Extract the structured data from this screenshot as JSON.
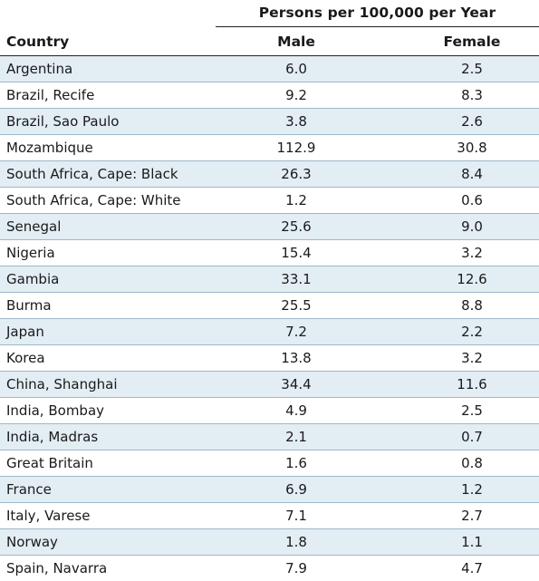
{
  "table": {
    "group_header": "Persons per 100,000 per Year",
    "columns": {
      "country": "Country",
      "male": "Male",
      "female": "Female"
    },
    "rows": [
      {
        "country": "Argentina",
        "male": "6.0",
        "female": "2.5"
      },
      {
        "country": "Brazil, Recife",
        "male": "9.2",
        "female": "8.3"
      },
      {
        "country": "Brazil, Sao Paulo",
        "male": "3.8",
        "female": "2.6"
      },
      {
        "country": "Mozambique",
        "male": "112.9",
        "female": "30.8"
      },
      {
        "country": "South Africa, Cape: Black",
        "male": "26.3",
        "female": "8.4"
      },
      {
        "country": "South Africa, Cape: White",
        "male": "1.2",
        "female": "0.6"
      },
      {
        "country": "Senegal",
        "male": "25.6",
        "female": "9.0"
      },
      {
        "country": "Nigeria",
        "male": "15.4",
        "female": "3.2"
      },
      {
        "country": "Gambia",
        "male": "33.1",
        "female": "12.6"
      },
      {
        "country": "Burma",
        "male": "25.5",
        "female": "8.8"
      },
      {
        "country": "Japan",
        "male": "7.2",
        "female": "2.2"
      },
      {
        "country": "Korea",
        "male": "13.8",
        "female": "3.2"
      },
      {
        "country": "China, Shanghai",
        "male": "34.4",
        "female": "11.6"
      },
      {
        "country": "India, Bombay",
        "male": "4.9",
        "female": "2.5"
      },
      {
        "country": "India, Madras",
        "male": "2.1",
        "female": "0.7"
      },
      {
        "country": "Great Britain",
        "male": "1.6",
        "female": "0.8"
      },
      {
        "country": "France",
        "male": "6.9",
        "female": "1.2"
      },
      {
        "country": "Italy, Varese",
        "male": "7.1",
        "female": "2.7"
      },
      {
        "country": "Norway",
        "male": "1.8",
        "female": "1.1"
      },
      {
        "country": "Spain, Navarra",
        "male": "7.9",
        "female": "4.7"
      }
    ]
  },
  "colors": {
    "stripe": "#e3edf4",
    "row_rule": "#9db8cc",
    "header_rule": "#222222"
  }
}
